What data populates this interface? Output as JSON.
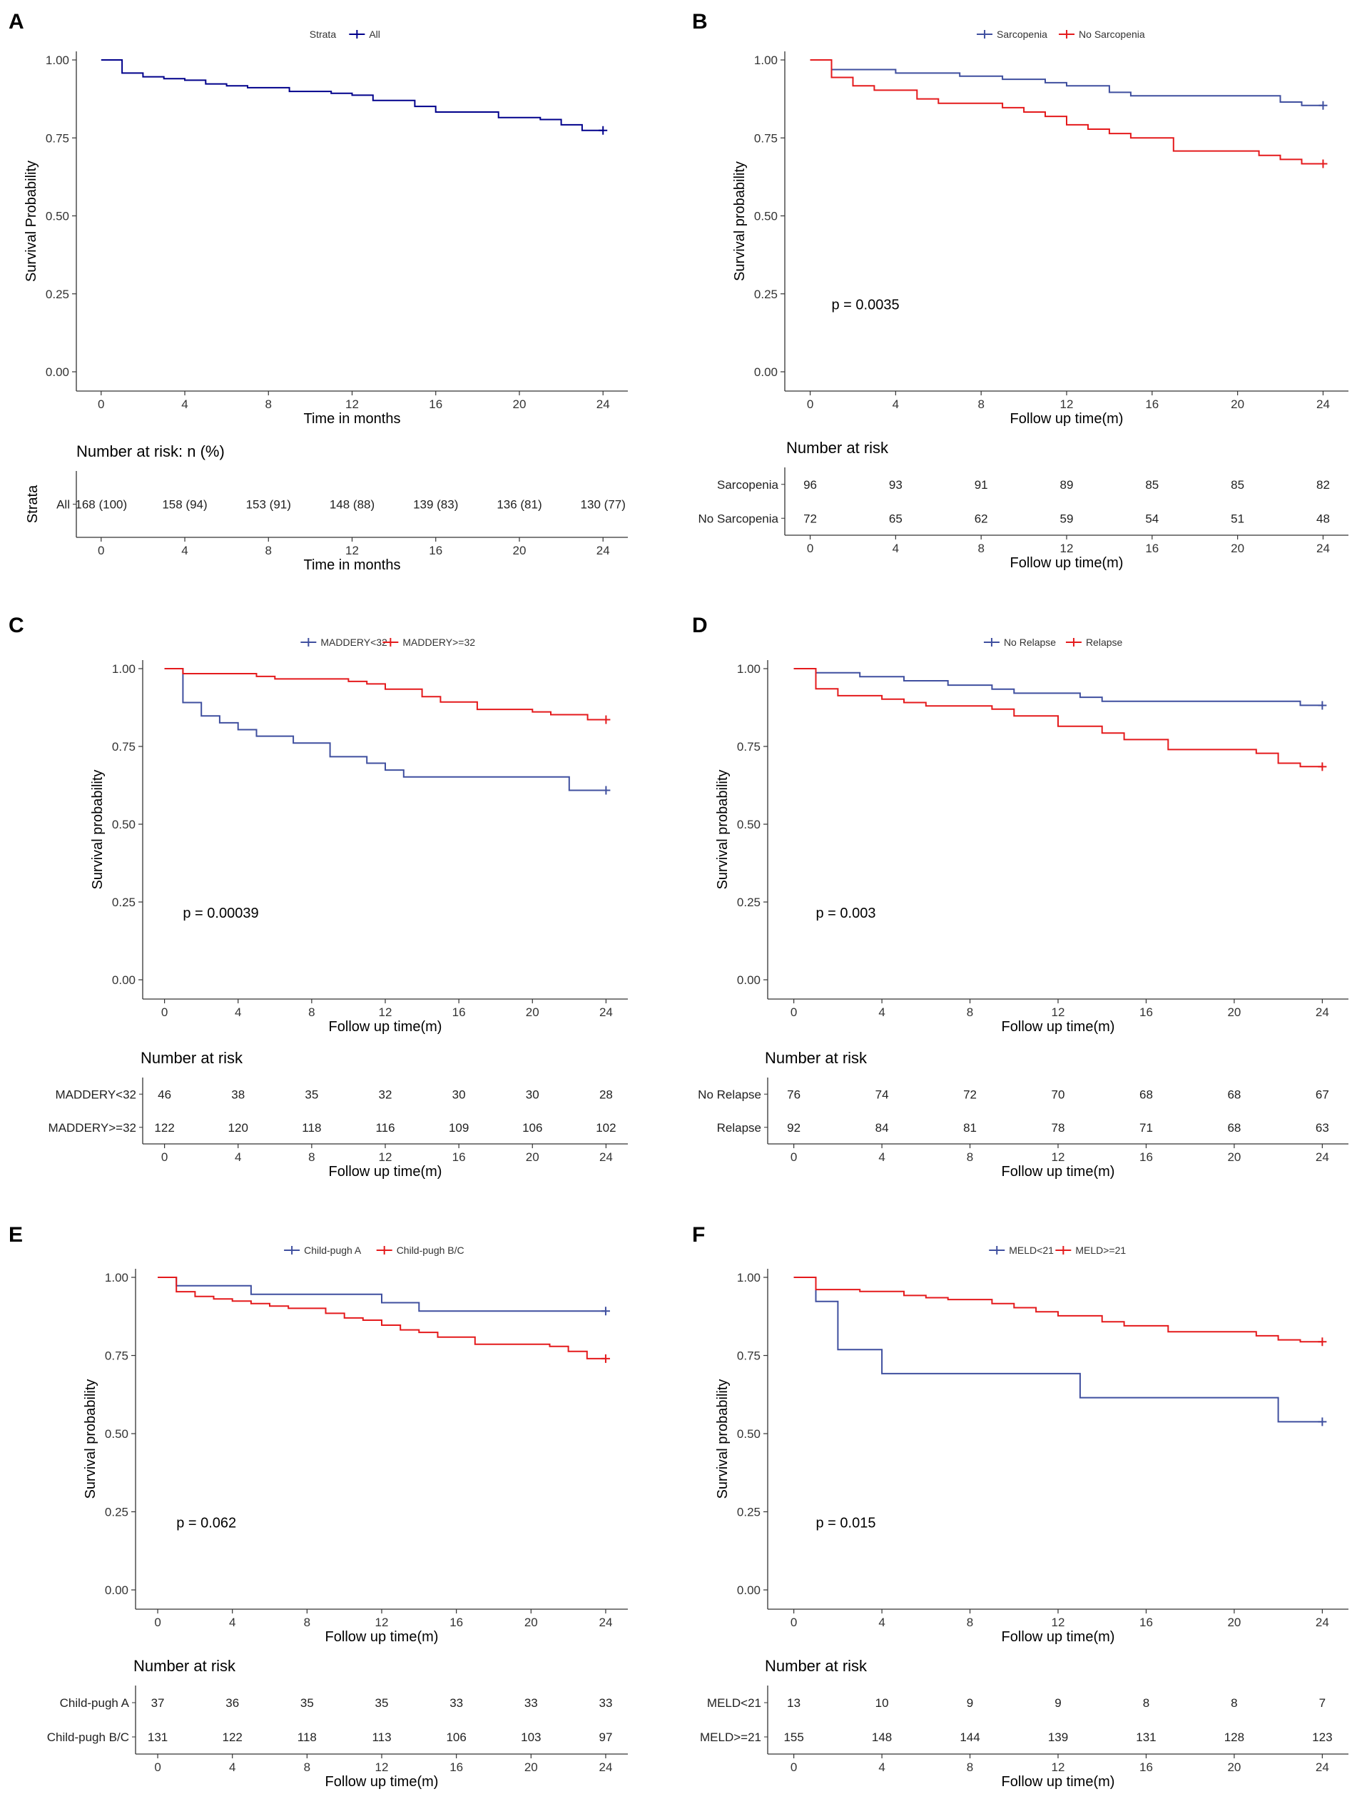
{
  "colors": {
    "blue": "#3F4F9F",
    "red": "#E41A1C",
    "navy": "#00008B",
    "axis": "#333333"
  },
  "chart_data": [
    {
      "type": "line",
      "label": "A",
      "legend_title": "Strata",
      "xlabel": "Time in months",
      "ylabel": "Survival Probability",
      "xlim": [
        0,
        24
      ],
      "ylim": [
        0,
        1
      ],
      "xticks": [
        "0",
        "4",
        "8",
        "12",
        "16",
        "20",
        "24"
      ],
      "yticks": [
        "0.00",
        "0.25",
        "0.50",
        "0.75",
        "1.00"
      ],
      "pvalue": "",
      "risk_title": "Number at risk: n (%)",
      "risk_ylabel": "Strata",
      "risk_xlabel": "Time in months",
      "series": [
        {
          "name": "All",
          "color": "#00008B",
          "steps": [
            [
              0,
              1.0
            ],
            [
              1,
              0.958
            ],
            [
              2,
              0.946
            ],
            [
              3,
              0.94
            ],
            [
              4,
              0.935
            ],
            [
              5,
              0.923
            ],
            [
              6,
              0.917
            ],
            [
              7,
              0.911
            ],
            [
              9,
              0.899
            ],
            [
              11,
              0.893
            ],
            [
              12,
              0.887
            ],
            [
              13,
              0.87
            ],
            [
              15,
              0.851
            ],
            [
              16,
              0.833
            ],
            [
              19,
              0.815
            ],
            [
              21,
              0.809
            ],
            [
              22,
              0.792
            ],
            [
              23,
              0.774
            ],
            [
              24,
              0.774
            ]
          ],
          "risk": [
            "168 (100)",
            "158 (94)",
            "153 (91)",
            "148 (88)",
            "139 (83)",
            "136 (81)",
            "130 (77)"
          ]
        }
      ]
    },
    {
      "type": "line",
      "label": "B",
      "legend_title": "",
      "xlabel": "Follow up time(m)",
      "ylabel": "Survival probability",
      "xlim": [
        0,
        24
      ],
      "ylim": [
        0,
        1
      ],
      "xticks": [
        "0",
        "4",
        "8",
        "12",
        "16",
        "20",
        "24"
      ],
      "yticks": [
        "0.00",
        "0.25",
        "0.50",
        "0.75",
        "1.00"
      ],
      "pvalue": "p = 0.0035",
      "risk_title": "Number at risk",
      "risk_ylabel": "",
      "risk_xlabel": "Follow up time(m)",
      "series": [
        {
          "name": "Sarcopenia",
          "color": "#3F4F9F",
          "steps": [
            [
              0,
              1.0
            ],
            [
              1,
              0.969
            ],
            [
              4,
              0.958
            ],
            [
              7,
              0.948
            ],
            [
              9,
              0.938
            ],
            [
              11,
              0.927
            ],
            [
              12,
              0.917
            ],
            [
              14,
              0.896
            ],
            [
              15,
              0.885
            ],
            [
              19,
              0.885
            ],
            [
              22,
              0.865
            ],
            [
              23,
              0.854
            ],
            [
              24,
              0.854
            ]
          ],
          "risk": [
            "96",
            "93",
            "91",
            "89",
            "85",
            "85",
            "82"
          ]
        },
        {
          "name": "No Sarcopenia",
          "color": "#E41A1C",
          "steps": [
            [
              0,
              1.0
            ],
            [
              1,
              0.944
            ],
            [
              2,
              0.917
            ],
            [
              3,
              0.903
            ],
            [
              5,
              0.875
            ],
            [
              6,
              0.861
            ],
            [
              9,
              0.847
            ],
            [
              10,
              0.833
            ],
            [
              11,
              0.819
            ],
            [
              12,
              0.792
            ],
            [
              13,
              0.778
            ],
            [
              14,
              0.764
            ],
            [
              15,
              0.75
            ],
            [
              17,
              0.708
            ],
            [
              21,
              0.694
            ],
            [
              22,
              0.681
            ],
            [
              23,
              0.667
            ],
            [
              24,
              0.667
            ]
          ],
          "risk": [
            "72",
            "65",
            "62",
            "59",
            "54",
            "51",
            "48"
          ]
        }
      ]
    },
    {
      "type": "line",
      "label": "C",
      "legend_title": "",
      "xlabel": "Follow up time(m)",
      "ylabel": "Survival probability",
      "xlim": [
        0,
        24
      ],
      "ylim": [
        0,
        1
      ],
      "xticks": [
        "0",
        "4",
        "8",
        "12",
        "16",
        "20",
        "24"
      ],
      "yticks": [
        "0.00",
        "0.25",
        "0.50",
        "0.75",
        "1.00"
      ],
      "pvalue": "p = 0.00039",
      "risk_title": "Number at risk",
      "risk_ylabel": "",
      "risk_xlabel": "Follow up time(m)",
      "series": [
        {
          "name": "MADDERY<32",
          "color": "#3F4F9F",
          "steps": [
            [
              0,
              1.0
            ],
            [
              1,
              0.891
            ],
            [
              2,
              0.848
            ],
            [
              3,
              0.826
            ],
            [
              4,
              0.804
            ],
            [
              5,
              0.783
            ],
            [
              7,
              0.761
            ],
            [
              9,
              0.717
            ],
            [
              11,
              0.696
            ],
            [
              12,
              0.674
            ],
            [
              13,
              0.652
            ],
            [
              22,
              0.609
            ],
            [
              24,
              0.609
            ]
          ],
          "risk": [
            "46",
            "38",
            "35",
            "32",
            "30",
            "30",
            "28"
          ]
        },
        {
          "name": "MADDERY>=32",
          "color": "#E41A1C",
          "steps": [
            [
              0,
              1.0
            ],
            [
              1,
              0.984
            ],
            [
              5,
              0.975
            ],
            [
              6,
              0.967
            ],
            [
              10,
              0.959
            ],
            [
              11,
              0.951
            ],
            [
              12,
              0.934
            ],
            [
              14,
              0.91
            ],
            [
              15,
              0.893
            ],
            [
              17,
              0.869
            ],
            [
              20,
              0.861
            ],
            [
              21,
              0.852
            ],
            [
              23,
              0.836
            ],
            [
              24,
              0.836
            ]
          ],
          "risk": [
            "122",
            "120",
            "118",
            "116",
            "109",
            "106",
            "102"
          ]
        }
      ]
    },
    {
      "type": "line",
      "label": "D",
      "legend_title": "",
      "xlabel": "Follow up time(m)",
      "ylabel": "Survival probability",
      "xlim": [
        0,
        24
      ],
      "ylim": [
        0,
        1
      ],
      "xticks": [
        "0",
        "4",
        "8",
        "12",
        "16",
        "20",
        "24"
      ],
      "yticks": [
        "0.00",
        "0.25",
        "0.50",
        "0.75",
        "1.00"
      ],
      "pvalue": "p = 0.003",
      "risk_title": "Number at risk",
      "risk_ylabel": "",
      "risk_xlabel": "Follow up time(m)",
      "series": [
        {
          "name": "No Relapse",
          "color": "#3F4F9F",
          "steps": [
            [
              0,
              1.0
            ],
            [
              1,
              0.987
            ],
            [
              3,
              0.974
            ],
            [
              5,
              0.961
            ],
            [
              7,
              0.947
            ],
            [
              9,
              0.934
            ],
            [
              10,
              0.921
            ],
            [
              13,
              0.908
            ],
            [
              14,
              0.895
            ],
            [
              23,
              0.882
            ],
            [
              24,
              0.882
            ]
          ],
          "risk": [
            "76",
            "74",
            "72",
            "70",
            "68",
            "68",
            "67"
          ]
        },
        {
          "name": "Relapse",
          "color": "#E41A1C",
          "steps": [
            [
              0,
              1.0
            ],
            [
              1,
              0.935
            ],
            [
              2,
              0.913
            ],
            [
              4,
              0.902
            ],
            [
              5,
              0.891
            ],
            [
              6,
              0.88
            ],
            [
              9,
              0.87
            ],
            [
              10,
              0.848
            ],
            [
              12,
              0.815
            ],
            [
              14,
              0.793
            ],
            [
              15,
              0.772
            ],
            [
              17,
              0.74
            ],
            [
              21,
              0.728
            ],
            [
              22,
              0.696
            ],
            [
              23,
              0.685
            ],
            [
              24,
              0.685
            ]
          ],
          "risk": [
            "92",
            "84",
            "81",
            "78",
            "71",
            "68",
            "63"
          ]
        }
      ]
    },
    {
      "type": "line",
      "label": "E",
      "legend_title": "",
      "xlabel": "Follow up time(m)",
      "ylabel": "Survival probability",
      "xlim": [
        0,
        24
      ],
      "ylim": [
        0,
        1
      ],
      "xticks": [
        "0",
        "4",
        "8",
        "12",
        "16",
        "20",
        "24"
      ],
      "yticks": [
        "0.00",
        "0.25",
        "0.50",
        "0.75",
        "1.00"
      ],
      "pvalue": "p = 0.062",
      "risk_title": "Number at risk",
      "risk_ylabel": "",
      "risk_xlabel": "Follow up time(m)",
      "series": [
        {
          "name": "Child-pugh A",
          "color": "#3F4F9F",
          "steps": [
            [
              0,
              1.0
            ],
            [
              1,
              0.973
            ],
            [
              5,
              0.946
            ],
            [
              12,
              0.919
            ],
            [
              14,
              0.892
            ],
            [
              24,
              0.892
            ]
          ],
          "risk": [
            "37",
            "36",
            "35",
            "35",
            "33",
            "33",
            "33"
          ]
        },
        {
          "name": "Child-pugh B/C",
          "color": "#E41A1C",
          "steps": [
            [
              0,
              1.0
            ],
            [
              1,
              0.954
            ],
            [
              2,
              0.939
            ],
            [
              3,
              0.931
            ],
            [
              4,
              0.924
            ],
            [
              5,
              0.916
            ],
            [
              6,
              0.908
            ],
            [
              7,
              0.901
            ],
            [
              9,
              0.885
            ],
            [
              10,
              0.87
            ],
            [
              11,
              0.863
            ],
            [
              12,
              0.847
            ],
            [
              13,
              0.832
            ],
            [
              14,
              0.824
            ],
            [
              15,
              0.809
            ],
            [
              17,
              0.786
            ],
            [
              21,
              0.779
            ],
            [
              22,
              0.763
            ],
            [
              23,
              0.74
            ],
            [
              24,
              0.74
            ]
          ],
          "risk": [
            "131",
            "122",
            "118",
            "113",
            "106",
            "103",
            "97"
          ]
        }
      ]
    },
    {
      "type": "line",
      "label": "F",
      "legend_title": "",
      "xlabel": "Follow up time(m)",
      "ylabel": "Survival probability",
      "xlim": [
        0,
        24
      ],
      "ylim": [
        0,
        1
      ],
      "xticks": [
        "0",
        "4",
        "8",
        "12",
        "16",
        "20",
        "24"
      ],
      "yticks": [
        "0.00",
        "0.25",
        "0.50",
        "0.75",
        "1.00"
      ],
      "pvalue": "p = 0.015",
      "risk_title": "Number at risk",
      "risk_ylabel": "",
      "risk_xlabel": "Follow up time(m)",
      "series": [
        {
          "name": "MELD<21",
          "color": "#3F4F9F",
          "steps": [
            [
              0,
              1.0
            ],
            [
              1,
              0.923
            ],
            [
              2,
              0.769
            ],
            [
              4,
              0.692
            ],
            [
              13,
              0.615
            ],
            [
              22,
              0.538
            ],
            [
              24,
              0.538
            ]
          ],
          "risk": [
            "13",
            "10",
            "9",
            "9",
            "8",
            "8",
            "7"
          ]
        },
        {
          "name": "MELD>=21",
          "color": "#E41A1C",
          "steps": [
            [
              0,
              1.0
            ],
            [
              1,
              0.961
            ],
            [
              3,
              0.955
            ],
            [
              5,
              0.942
            ],
            [
              6,
              0.935
            ],
            [
              7,
              0.929
            ],
            [
              9,
              0.916
            ],
            [
              10,
              0.903
            ],
            [
              11,
              0.89
            ],
            [
              12,
              0.877
            ],
            [
              14,
              0.858
            ],
            [
              15,
              0.845
            ],
            [
              17,
              0.826
            ],
            [
              21,
              0.813
            ],
            [
              22,
              0.8
            ],
            [
              23,
              0.794
            ],
            [
              24,
              0.794
            ]
          ],
          "risk": [
            "155",
            "148",
            "144",
            "139",
            "131",
            "128",
            "123"
          ]
        }
      ]
    }
  ]
}
